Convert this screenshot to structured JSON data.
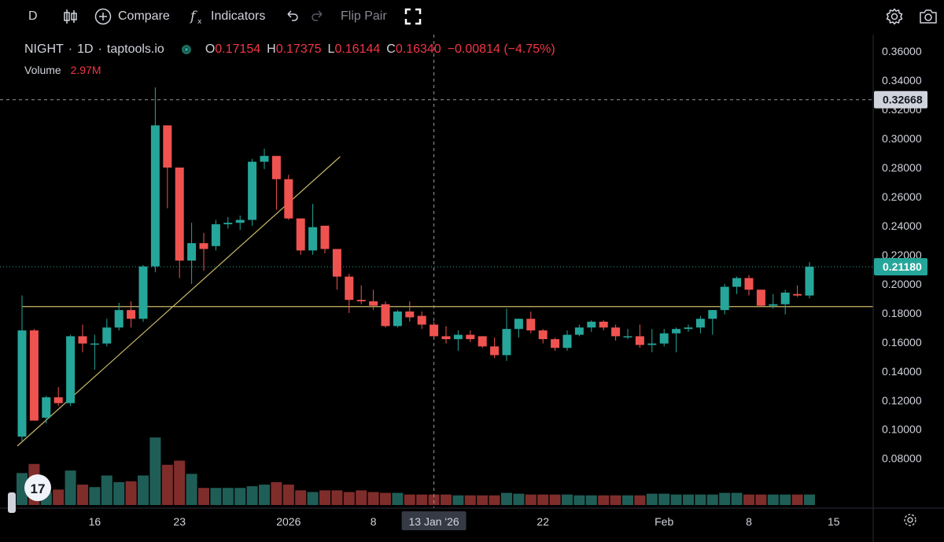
{
  "toolbar": {
    "interval": "D",
    "compare_label": "Compare",
    "indicators_label": "Indicators",
    "flip_pair_label": "Flip Pair"
  },
  "legend": {
    "symbol": "NIGHT",
    "interval": "1D",
    "source": "taptools.io",
    "open_key": "O",
    "open": "0.17154",
    "high_key": "H",
    "high": "0.17375",
    "low_key": "L",
    "low": "0.16144",
    "close_key": "C",
    "close": "0.16340",
    "change": "−0.00814 (−4.75%)",
    "volume_label": "Volume",
    "volume_value": "2.97M"
  },
  "colors": {
    "up": "#26a69a",
    "down": "#ef5350",
    "vol_up": "#1f5e57",
    "vol_down": "#7f2d2b",
    "trendline": "#c8b96a",
    "background": "#000000",
    "text": "#d1d4dc"
  },
  "badges": {
    "crosshair_price": "0.32668",
    "last_price": "0.21180",
    "crosshair_date": "13 Jan '26"
  },
  "chart_data": {
    "type": "candlestick",
    "y_ticks": [
      "0.36000",
      "0.34000",
      "0.32000",
      "0.30000",
      "0.28000",
      "0.26000",
      "0.24000",
      "0.22000",
      "0.20000",
      "0.18000",
      "0.16000",
      "0.14000",
      "0.12000",
      "0.10000",
      "0.08000"
    ],
    "y_range": [
      0.0647,
      0.366
    ],
    "x_labels": [
      {
        "label": "16",
        "index": 6
      },
      {
        "label": "23",
        "index": 13
      },
      {
        "label": "2026",
        "index": 22
      },
      {
        "label": "8",
        "index": 29
      },
      {
        "label": "22",
        "index": 43
      },
      {
        "label": "Feb",
        "index": 53
      },
      {
        "label": "8",
        "index": 60
      },
      {
        "label": "15",
        "index": 67
      }
    ],
    "horizontal_line": 0.1844,
    "trendline": [
      {
        "index": 0,
        "value": 0.0885
      },
      {
        "index": 26,
        "value": 0.2875
      }
    ],
    "crosshair": {
      "index": 34,
      "value": 0.32668
    },
    "last_price_value": 0.2118,
    "candles": [
      {
        "o": 0.095,
        "h": 0.192,
        "l": 0.092,
        "c": 0.168,
        "v": 0.095
      },
      {
        "o": 0.168,
        "h": 0.169,
        "l": 0.106,
        "c": 0.106,
        "v": 0.106
      },
      {
        "o": 0.108,
        "h": 0.123,
        "l": 0.104,
        "c": 0.122,
        "v": 0.072
      },
      {
        "o": 0.122,
        "h": 0.129,
        "l": 0.116,
        "c": 0.118,
        "v": 0.075
      },
      {
        "o": 0.118,
        "h": 0.165,
        "l": 0.116,
        "c": 0.164,
        "v": 0.098
      },
      {
        "o": 0.164,
        "h": 0.172,
        "l": 0.153,
        "c": 0.159,
        "v": 0.081
      },
      {
        "o": 0.159,
        "h": 0.165,
        "l": 0.141,
        "c": 0.159,
        "v": 0.078
      },
      {
        "o": 0.159,
        "h": 0.176,
        "l": 0.157,
        "c": 0.17,
        "v": 0.092
      },
      {
        "o": 0.17,
        "h": 0.187,
        "l": 0.168,
        "c": 0.182,
        "v": 0.084
      },
      {
        "o": 0.182,
        "h": 0.188,
        "l": 0.17,
        "c": 0.176,
        "v": 0.085
      },
      {
        "o": 0.176,
        "h": 0.213,
        "l": 0.174,
        "c": 0.212,
        "v": 0.092
      },
      {
        "o": 0.212,
        "h": 0.335,
        "l": 0.208,
        "c": 0.309,
        "v": 0.138
      },
      {
        "o": 0.309,
        "h": 0.309,
        "l": 0.252,
        "c": 0.28,
        "v": 0.105
      },
      {
        "o": 0.28,
        "h": 0.28,
        "l": 0.204,
        "c": 0.216,
        "v": 0.11
      },
      {
        "o": 0.216,
        "h": 0.242,
        "l": 0.2,
        "c": 0.228,
        "v": 0.094
      },
      {
        "o": 0.228,
        "h": 0.235,
        "l": 0.209,
        "c": 0.224,
        "v": 0.077
      },
      {
        "o": 0.226,
        "h": 0.244,
        "l": 0.223,
        "c": 0.241,
        "v": 0.077
      },
      {
        "o": 0.241,
        "h": 0.246,
        "l": 0.238,
        "c": 0.242,
        "v": 0.077
      },
      {
        "o": 0.242,
        "h": 0.247,
        "l": 0.237,
        "c": 0.244,
        "v": 0.077
      },
      {
        "o": 0.244,
        "h": 0.286,
        "l": 0.24,
        "c": 0.284,
        "v": 0.079
      },
      {
        "o": 0.284,
        "h": 0.293,
        "l": 0.279,
        "c": 0.288,
        "v": 0.081
      },
      {
        "o": 0.288,
        "h": 0.288,
        "l": 0.251,
        "c": 0.272,
        "v": 0.084
      },
      {
        "o": 0.272,
        "h": 0.275,
        "l": 0.244,
        "c": 0.245,
        "v": 0.081
      },
      {
        "o": 0.245,
        "h": 0.245,
        "l": 0.22,
        "c": 0.223,
        "v": 0.074
      },
      {
        "o": 0.223,
        "h": 0.255,
        "l": 0.22,
        "c": 0.239,
        "v": 0.072
      },
      {
        "o": 0.24,
        "h": 0.24,
        "l": 0.221,
        "c": 0.224,
        "v": 0.074
      },
      {
        "o": 0.224,
        "h": 0.224,
        "l": 0.196,
        "c": 0.205,
        "v": 0.074
      },
      {
        "o": 0.205,
        "h": 0.207,
        "l": 0.18,
        "c": 0.189,
        "v": 0.072
      },
      {
        "o": 0.189,
        "h": 0.199,
        "l": 0.186,
        "c": 0.188,
        "v": 0.074
      },
      {
        "o": 0.188,
        "h": 0.196,
        "l": 0.182,
        "c": 0.185,
        "v": 0.072
      },
      {
        "o": 0.186,
        "h": 0.188,
        "l": 0.17,
        "c": 0.171,
        "v": 0.071
      },
      {
        "o": 0.171,
        "h": 0.182,
        "l": 0.17,
        "c": 0.181,
        "v": 0.071
      },
      {
        "o": 0.181,
        "h": 0.188,
        "l": 0.174,
        "c": 0.177,
        "v": 0.069
      },
      {
        "o": 0.178,
        "h": 0.181,
        "l": 0.169,
        "c": 0.172,
        "v": 0.069
      },
      {
        "o": 0.172,
        "h": 0.174,
        "l": 0.163,
        "c": 0.164,
        "v": 0.069
      },
      {
        "o": 0.164,
        "h": 0.171,
        "l": 0.159,
        "c": 0.162,
        "v": 0.069
      },
      {
        "o": 0.162,
        "h": 0.168,
        "l": 0.154,
        "c": 0.165,
        "v": 0.068
      },
      {
        "o": 0.165,
        "h": 0.168,
        "l": 0.16,
        "c": 0.162,
        "v": 0.068
      },
      {
        "o": 0.164,
        "h": 0.164,
        "l": 0.156,
        "c": 0.157,
        "v": 0.068
      },
      {
        "o": 0.157,
        "h": 0.163,
        "l": 0.149,
        "c": 0.151,
        "v": 0.068
      },
      {
        "o": 0.151,
        "h": 0.183,
        "l": 0.147,
        "c": 0.169,
        "v": 0.071
      },
      {
        "o": 0.169,
        "h": 0.176,
        "l": 0.163,
        "c": 0.176,
        "v": 0.07
      },
      {
        "o": 0.176,
        "h": 0.181,
        "l": 0.166,
        "c": 0.168,
        "v": 0.069
      },
      {
        "o": 0.168,
        "h": 0.169,
        "l": 0.159,
        "c": 0.162,
        "v": 0.069
      },
      {
        "o": 0.162,
        "h": 0.163,
        "l": 0.154,
        "c": 0.156,
        "v": 0.069
      },
      {
        "o": 0.156,
        "h": 0.168,
        "l": 0.154,
        "c": 0.165,
        "v": 0.069
      },
      {
        "o": 0.165,
        "h": 0.172,
        "l": 0.164,
        "c": 0.17,
        "v": 0.068
      },
      {
        "o": 0.17,
        "h": 0.175,
        "l": 0.167,
        "c": 0.174,
        "v": 0.068
      },
      {
        "o": 0.174,
        "h": 0.175,
        "l": 0.168,
        "c": 0.17,
        "v": 0.068
      },
      {
        "o": 0.17,
        "h": 0.172,
        "l": 0.161,
        "c": 0.164,
        "v": 0.068
      },
      {
        "o": 0.164,
        "h": 0.169,
        "l": 0.162,
        "c": 0.164,
        "v": 0.068
      },
      {
        "o": 0.164,
        "h": 0.172,
        "l": 0.156,
        "c": 0.158,
        "v": 0.068
      },
      {
        "o": 0.158,
        "h": 0.169,
        "l": 0.153,
        "c": 0.159,
        "v": 0.07
      },
      {
        "o": 0.159,
        "h": 0.169,
        "l": 0.157,
        "c": 0.166,
        "v": 0.07
      },
      {
        "o": 0.166,
        "h": 0.17,
        "l": 0.153,
        "c": 0.169,
        "v": 0.069
      },
      {
        "o": 0.169,
        "h": 0.172,
        "l": 0.167,
        "c": 0.17,
        "v": 0.069
      },
      {
        "o": 0.17,
        "h": 0.178,
        "l": 0.166,
        "c": 0.176,
        "v": 0.069
      },
      {
        "o": 0.176,
        "h": 0.182,
        "l": 0.165,
        "c": 0.182,
        "v": 0.069
      },
      {
        "o": 0.182,
        "h": 0.2,
        "l": 0.179,
        "c": 0.198,
        "v": 0.071
      },
      {
        "o": 0.198,
        "h": 0.205,
        "l": 0.193,
        "c": 0.204,
        "v": 0.071
      },
      {
        "o": 0.204,
        "h": 0.206,
        "l": 0.192,
        "c": 0.196,
        "v": 0.069
      },
      {
        "o": 0.196,
        "h": 0.196,
        "l": 0.184,
        "c": 0.185,
        "v": 0.069
      },
      {
        "o": 0.185,
        "h": 0.193,
        "l": 0.183,
        "c": 0.186,
        "v": 0.069
      },
      {
        "o": 0.186,
        "h": 0.196,
        "l": 0.179,
        "c": 0.194,
        "v": 0.069
      },
      {
        "o": 0.193,
        "h": 0.199,
        "l": 0.191,
        "c": 0.192,
        "v": 0.069
      },
      {
        "o": 0.192,
        "h": 0.215,
        "l": 0.19,
        "c": 0.2118,
        "v": 0.069
      }
    ]
  }
}
